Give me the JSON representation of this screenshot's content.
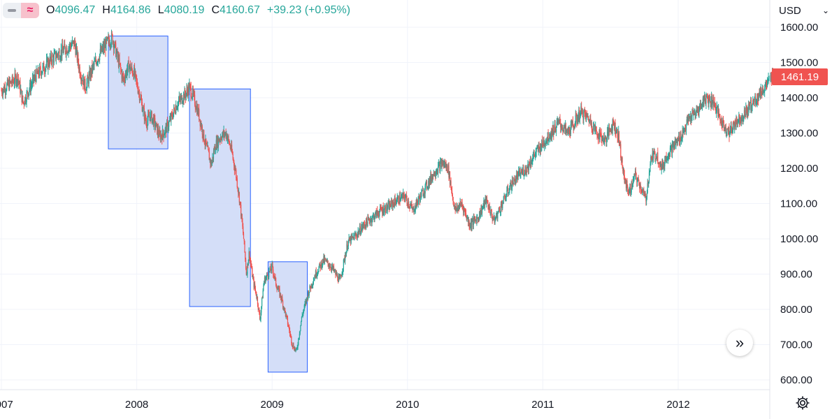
{
  "legend": {
    "open_key": "O",
    "open": "4096.47",
    "high_key": "H",
    "high": "4164.86",
    "low_key": "L",
    "low": "4080.19",
    "close_key": "C",
    "close": "4160.67",
    "change": "+39.23 (+0.95%)",
    "toggle_icons": [
      "minus-icon",
      "wave-icon"
    ],
    "up_color": "#26a69a"
  },
  "currency": {
    "label": "USD",
    "icon": "chevron-down-icon"
  },
  "last_price": {
    "label": "1461.19",
    "value": 1461.19,
    "color": "#f05350"
  },
  "scroll_button": {
    "glyph": "»",
    "icon": "double-chevron-right-icon"
  },
  "settings": {
    "icon": "gear-icon"
  },
  "chart_data": {
    "type": "candlestick",
    "up_color": "#26a69a",
    "down_color": "#ef5350",
    "highlight_color": "#cfdaf7",
    "y_tick_labels": [
      "1600.00",
      "1500.00",
      "1400.00",
      "1300.00",
      "1200.00",
      "1100.00",
      "1000.00",
      "900.00",
      "800.00",
      "700.00",
      "600.00"
    ],
    "y_ticks": [
      1600,
      1500,
      1400,
      1300,
      1200,
      1100,
      1000,
      900,
      800,
      700,
      600
    ],
    "x_tick_labels": [
      "2007",
      "2008",
      "2009",
      "2010",
      "2011",
      "2012"
    ],
    "x_ticks": [
      2007.0,
      2008.0,
      2009.0,
      2010.0,
      2011.0,
      2012.0
    ],
    "x_range": [
      2007.0,
      2012.72
    ],
    "y_range": [
      580,
      1680
    ],
    "highlights": [
      {
        "x": [
          2007.79,
          2008.23
        ],
        "y": [
          1255,
          1575
        ]
      },
      {
        "x": [
          2008.39,
          2008.84
        ],
        "y": [
          808,
          1425
        ]
      },
      {
        "x": [
          2008.97,
          2009.26
        ],
        "y": [
          622,
          935
        ]
      }
    ],
    "anchors": [
      [
        2007.0,
        1420
      ],
      [
        2007.03,
        1430
      ],
      [
        2007.08,
        1445
      ],
      [
        2007.12,
        1460
      ],
      [
        2007.16,
        1385
      ],
      [
        2007.2,
        1420
      ],
      [
        2007.25,
        1460
      ],
      [
        2007.3,
        1480
      ],
      [
        2007.36,
        1505
      ],
      [
        2007.42,
        1525
      ],
      [
        2007.48,
        1540
      ],
      [
        2007.54,
        1555
      ],
      [
        2007.58,
        1475
      ],
      [
        2007.62,
        1430
      ],
      [
        2007.67,
        1480
      ],
      [
        2007.72,
        1520
      ],
      [
        2007.78,
        1555
      ],
      [
        2007.82,
        1570
      ],
      [
        2007.86,
        1510
      ],
      [
        2007.9,
        1450
      ],
      [
        2007.94,
        1490
      ],
      [
        2007.98,
        1470
      ],
      [
        2008.02,
        1410
      ],
      [
        2008.05,
        1360
      ],
      [
        2008.07,
        1330
      ],
      [
        2008.1,
        1350
      ],
      [
        2008.13,
        1330
      ],
      [
        2008.17,
        1290
      ],
      [
        2008.2,
        1300
      ],
      [
        2008.24,
        1330
      ],
      [
        2008.3,
        1385
      ],
      [
        2008.36,
        1410
      ],
      [
        2008.39,
        1430
      ],
      [
        2008.42,
        1400
      ],
      [
        2008.46,
        1350
      ],
      [
        2008.5,
        1280
      ],
      [
        2008.53,
        1240
      ],
      [
        2008.55,
        1210
      ],
      [
        2008.58,
        1265
      ],
      [
        2008.62,
        1290
      ],
      [
        2008.66,
        1300
      ],
      [
        2008.7,
        1250
      ],
      [
        2008.73,
        1190
      ],
      [
        2008.76,
        1110
      ],
      [
        2008.79,
        1000
      ],
      [
        2008.81,
        900
      ],
      [
        2008.83,
        960
      ],
      [
        2008.86,
        880
      ],
      [
        2008.89,
        830
      ],
      [
        2008.91,
        770
      ],
      [
        2008.94,
        880
      ],
      [
        2008.97,
        900
      ],
      [
        2009.0,
        920
      ],
      [
        2009.03,
        870
      ],
      [
        2009.07,
        830
      ],
      [
        2009.11,
        770
      ],
      [
        2009.15,
        700
      ],
      [
        2009.18,
        680
      ],
      [
        2009.22,
        780
      ],
      [
        2009.27,
        850
      ],
      [
        2009.32,
        900
      ],
      [
        2009.38,
        940
      ],
      [
        2009.44,
        920
      ],
      [
        2009.5,
        880
      ],
      [
        2009.56,
        990
      ],
      [
        2009.62,
        1010
      ],
      [
        2009.68,
        1040
      ],
      [
        2009.74,
        1060
      ],
      [
        2009.8,
        1080
      ],
      [
        2009.86,
        1090
      ],
      [
        2009.92,
        1110
      ],
      [
        2009.98,
        1120
      ],
      [
        2010.04,
        1080
      ],
      [
        2010.08,
        1110
      ],
      [
        2010.14,
        1150
      ],
      [
        2010.2,
        1190
      ],
      [
        2010.26,
        1215
      ],
      [
        2010.3,
        1200
      ],
      [
        2010.35,
        1080
      ],
      [
        2010.4,
        1100
      ],
      [
        2010.46,
        1040
      ],
      [
        2010.52,
        1060
      ],
      [
        2010.58,
        1110
      ],
      [
        2010.64,
        1050
      ],
      [
        2010.7,
        1100
      ],
      [
        2010.76,
        1150
      ],
      [
        2010.82,
        1180
      ],
      [
        2010.88,
        1200
      ],
      [
        2010.94,
        1240
      ],
      [
        2011.0,
        1270
      ],
      [
        2011.06,
        1300
      ],
      [
        2011.12,
        1330
      ],
      [
        2011.18,
        1300
      ],
      [
        2011.22,
        1320
      ],
      [
        2011.28,
        1360
      ],
      [
        2011.34,
        1340
      ],
      [
        2011.4,
        1300
      ],
      [
        2011.46,
        1280
      ],
      [
        2011.52,
        1330
      ],
      [
        2011.56,
        1290
      ],
      [
        2011.6,
        1170
      ],
      [
        2011.64,
        1130
      ],
      [
        2011.68,
        1180
      ],
      [
        2011.72,
        1150
      ],
      [
        2011.76,
        1110
      ],
      [
        2011.8,
        1230
      ],
      [
        2011.84,
        1240
      ],
      [
        2011.88,
        1200
      ],
      [
        2011.92,
        1240
      ],
      [
        2011.96,
        1260
      ],
      [
        2012.02,
        1290
      ],
      [
        2012.08,
        1340
      ],
      [
        2012.14,
        1360
      ],
      [
        2012.2,
        1400
      ],
      [
        2012.26,
        1390
      ],
      [
        2012.32,
        1330
      ],
      [
        2012.38,
        1300
      ],
      [
        2012.42,
        1330
      ],
      [
        2012.48,
        1350
      ],
      [
        2012.54,
        1380
      ],
      [
        2012.6,
        1410
      ],
      [
        2012.66,
        1440
      ],
      [
        2012.7,
        1461
      ]
    ]
  }
}
